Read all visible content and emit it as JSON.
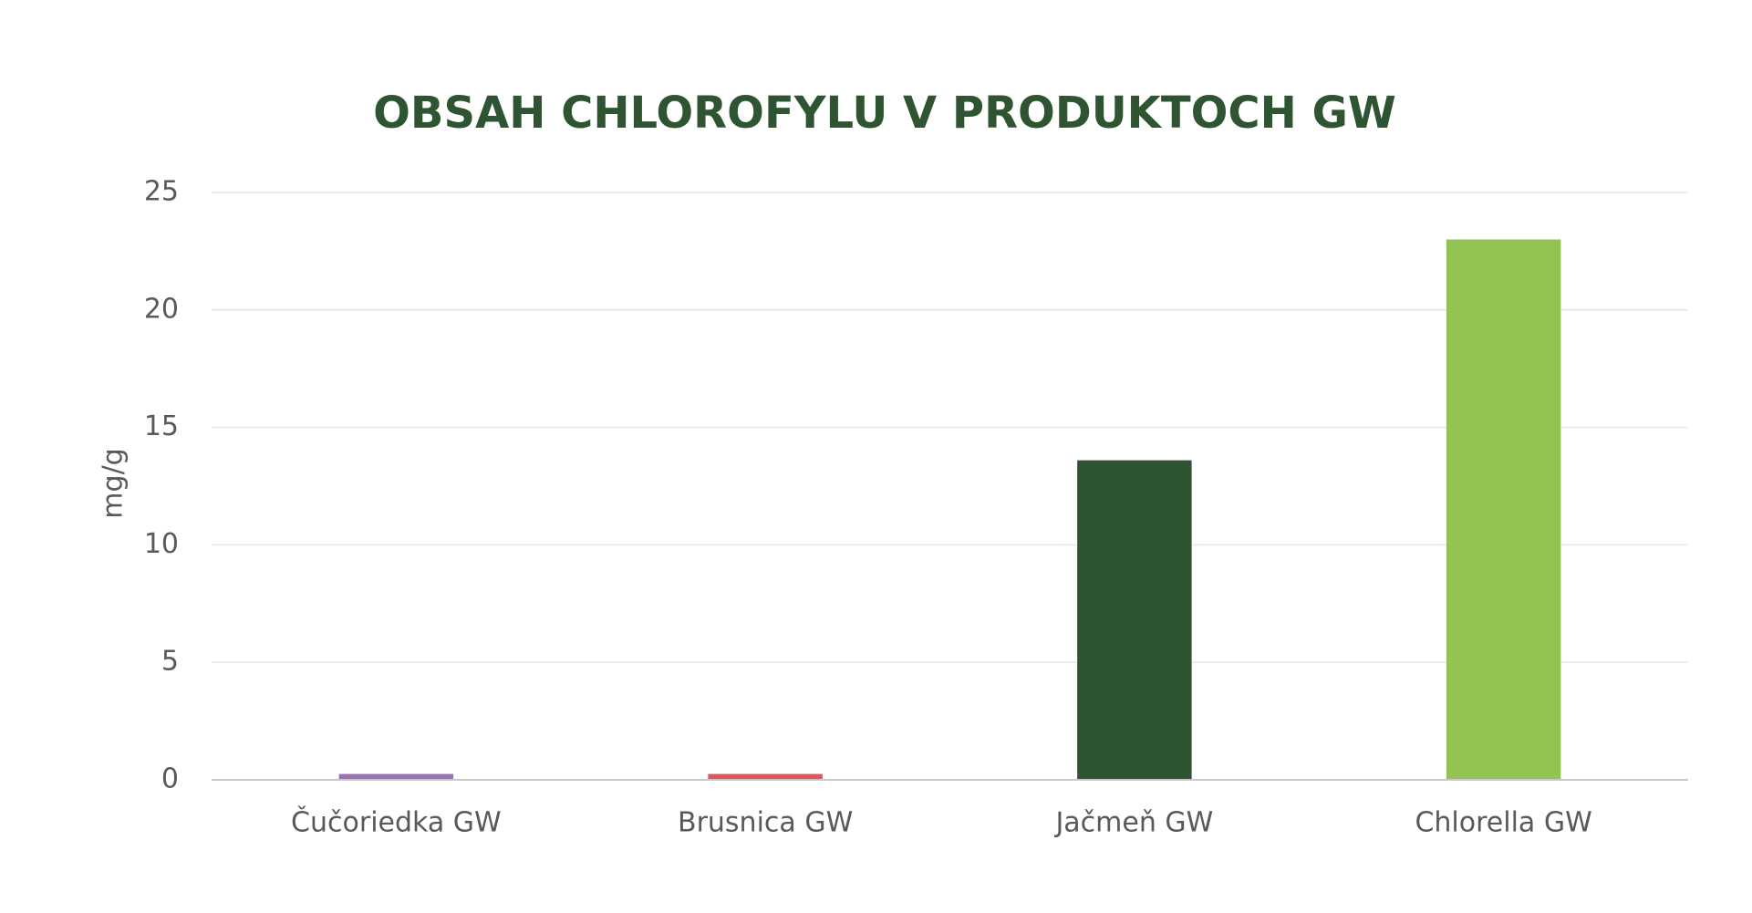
{
  "chart_data": {
    "type": "bar",
    "title": "OBSAH CHLOROFYLU V PRODUKTOCH GW",
    "y_label": "mg/g",
    "categories": [
      "Čučoriedka GW",
      "Brusnica GW",
      "Jačmeň GW",
      "Chlorella GW"
    ],
    "values": [
      0.25,
      0.25,
      13.6,
      23
    ],
    "colors": [
      "#9b72b5",
      "#e05555",
      "#2f5432",
      "#92c353"
    ],
    "ylim": [
      0,
      25
    ],
    "yticks": [
      0,
      5,
      10,
      15,
      20,
      25
    ],
    "grid": true
  }
}
